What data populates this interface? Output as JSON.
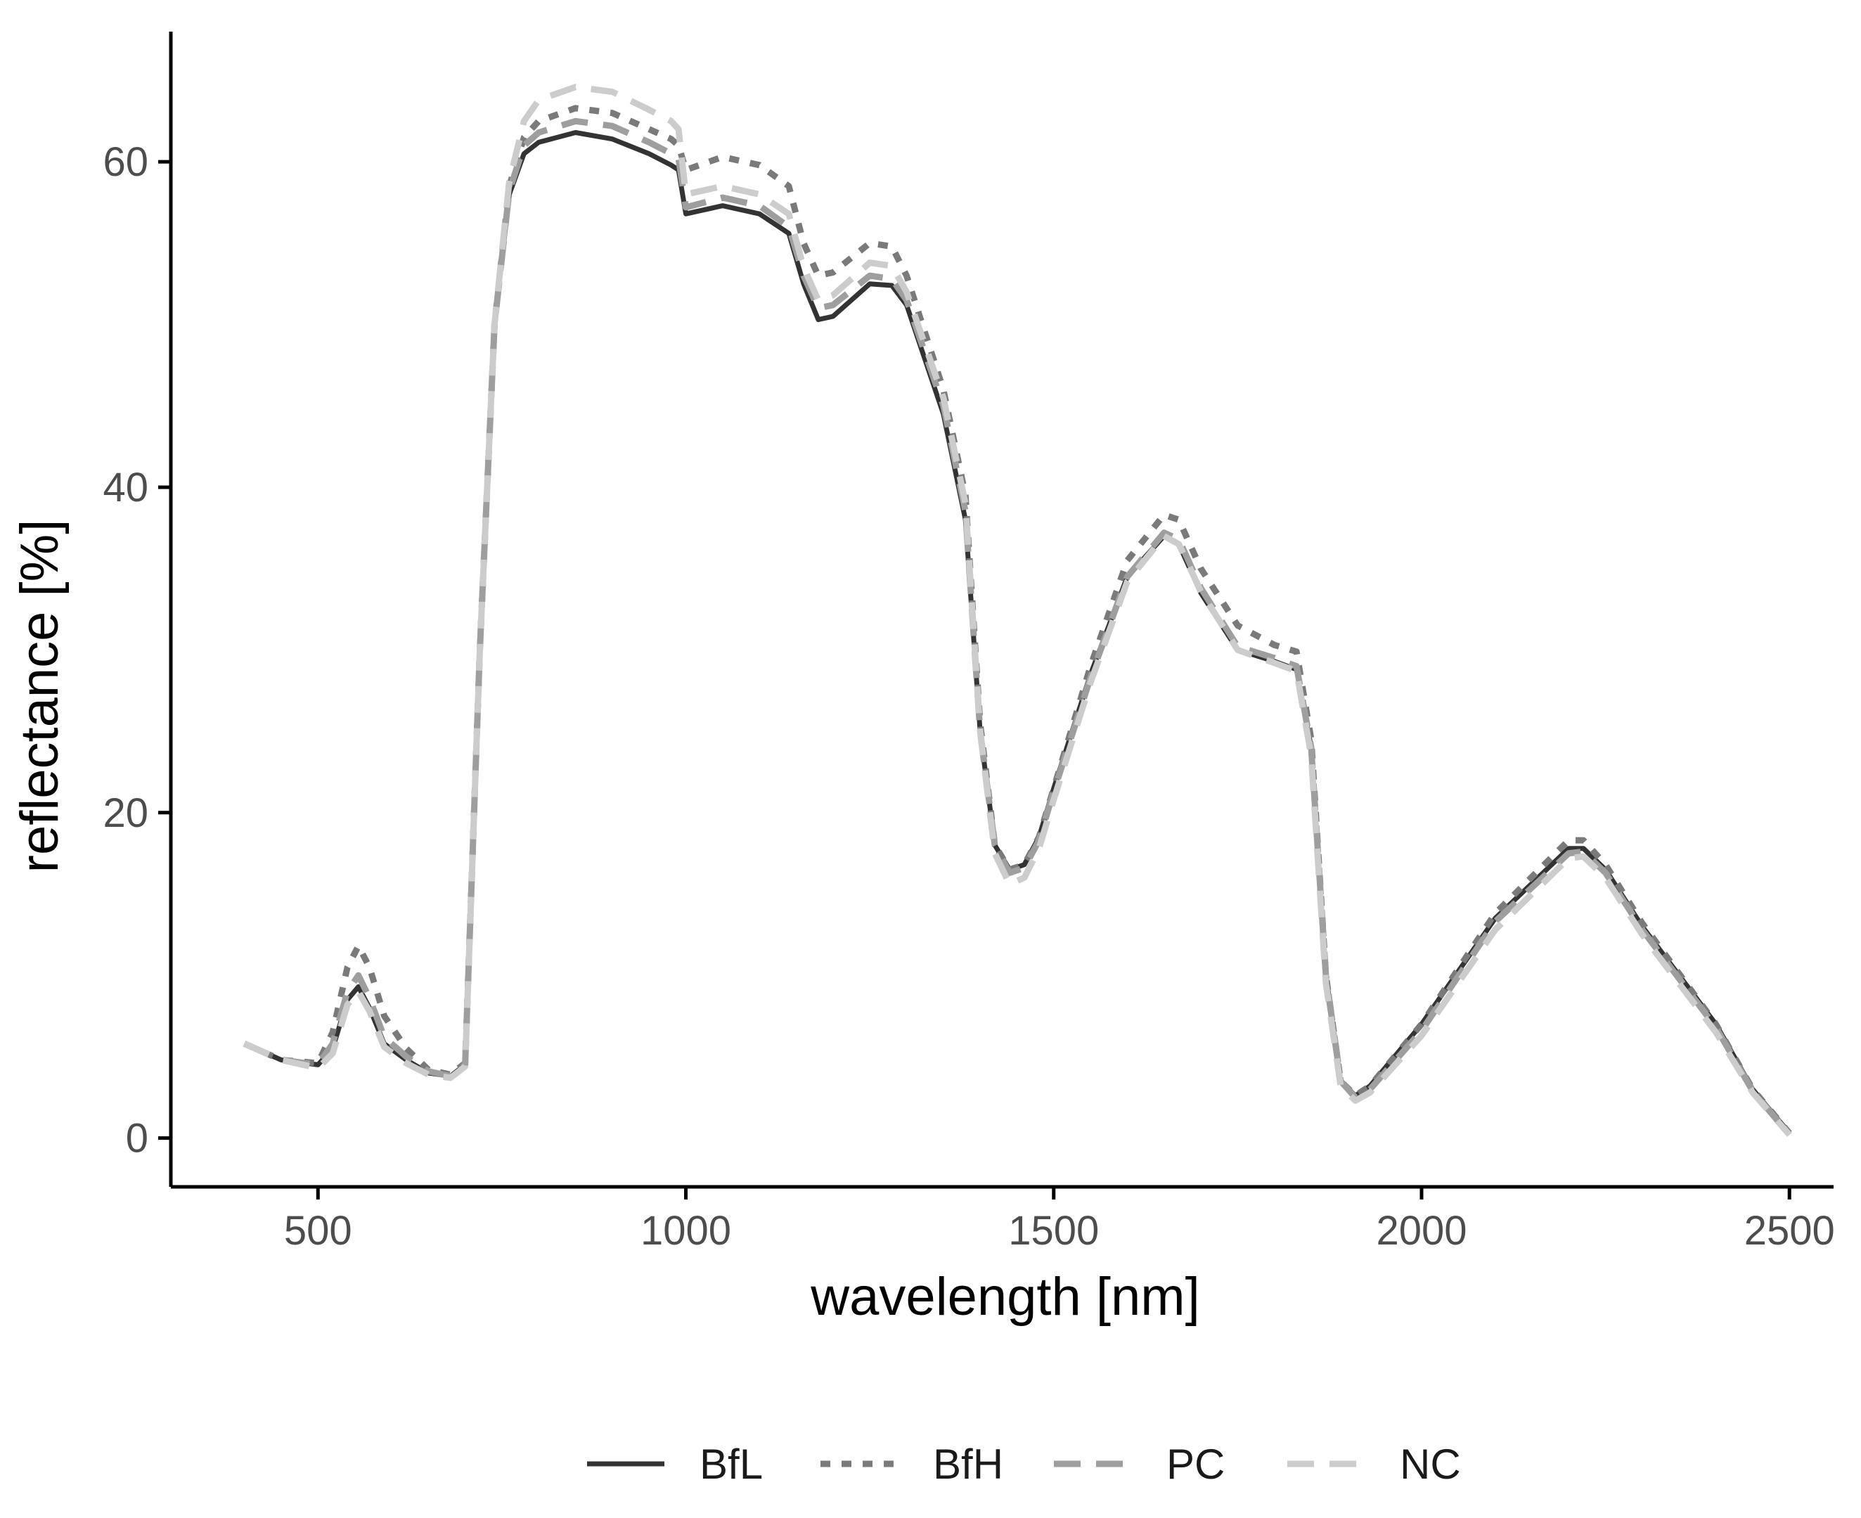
{
  "chart_data": {
    "type": "line",
    "title": "",
    "xlabel": "wavelength [nm]",
    "ylabel": "reflectance [%]",
    "xlim": [
      300,
      2560
    ],
    "ylim": [
      -3,
      68
    ],
    "x_ticks": [
      500,
      1000,
      1500,
      2000,
      2500
    ],
    "y_ticks": [
      0,
      20,
      40,
      60
    ],
    "grid": false,
    "legend_position": "bottom",
    "series": [
      {
        "name": "BfL",
        "color": "#333333",
        "dash": "solid",
        "x": [
          400,
          450,
          500,
          520,
          540,
          555,
          570,
          590,
          620,
          650,
          680,
          700,
          720,
          740,
          760,
          780,
          800,
          850,
          900,
          950,
          980,
          990,
          1000,
          1050,
          1100,
          1140,
          1160,
          1180,
          1200,
          1250,
          1280,
          1300,
          1350,
          1380,
          1400,
          1420,
          1440,
          1460,
          1480,
          1500,
          1550,
          1600,
          1650,
          1670,
          1700,
          1750,
          1800,
          1830,
          1850,
          1870,
          1890,
          1910,
          1930,
          2000,
          2100,
          2200,
          2220,
          2250,
          2300,
          2400,
          2450,
          2500
        ],
        "y": [
          5.8,
          4.8,
          4.5,
          5.5,
          8.5,
          9.3,
          8.0,
          5.8,
          4.8,
          4.0,
          3.8,
          4.5,
          30,
          50,
          58,
          60.5,
          61.2,
          61.8,
          61.4,
          60.5,
          59.8,
          59.5,
          56.8,
          57.3,
          56.8,
          55.6,
          52.5,
          50.3,
          50.5,
          52.5,
          52.4,
          51.2,
          44.5,
          38,
          25,
          18,
          16.5,
          16.8,
          18.5,
          21.5,
          28.5,
          34.5,
          37.0,
          36.5,
          33.5,
          30.0,
          29.3,
          28.8,
          24,
          10,
          3.5,
          2.6,
          3.2,
          7.0,
          13.5,
          17.8,
          17.8,
          16.5,
          13.0,
          7.0,
          3.0,
          0.3
        ]
      },
      {
        "name": "BfH",
        "color": "#7a7a7a",
        "dash": "dotted",
        "x": [
          400,
          450,
          500,
          520,
          540,
          555,
          570,
          590,
          620,
          650,
          680,
          700,
          720,
          740,
          760,
          780,
          800,
          850,
          900,
          950,
          980,
          990,
          1000,
          1050,
          1100,
          1140,
          1160,
          1180,
          1200,
          1250,
          1280,
          1300,
          1350,
          1380,
          1400,
          1420,
          1440,
          1460,
          1480,
          1500,
          1550,
          1600,
          1650,
          1670,
          1700,
          1750,
          1800,
          1830,
          1850,
          1870,
          1890,
          1910,
          1930,
          2000,
          2100,
          2200,
          2220,
          2250,
          2300,
          2400,
          2450,
          2500
        ],
        "y": [
          5.8,
          4.8,
          4.6,
          6.5,
          10.5,
          11.8,
          10.5,
          7.5,
          5.5,
          4.2,
          3.9,
          4.6,
          30,
          50,
          58.5,
          61.5,
          62.5,
          63.3,
          63.0,
          62.0,
          61.4,
          61.0,
          59.5,
          60.3,
          59.8,
          58.5,
          55.0,
          53.0,
          53.2,
          55.0,
          54.8,
          53.0,
          46.0,
          39.5,
          25.5,
          18,
          16.5,
          16.8,
          18.5,
          21.5,
          29,
          35.5,
          38.3,
          38.0,
          35.0,
          31.5,
          30.3,
          29.9,
          24.5,
          10,
          3.5,
          2.6,
          3.2,
          7.0,
          13.8,
          18.3,
          18.3,
          16.8,
          13.2,
          7.0,
          3.0,
          0.3
        ]
      },
      {
        "name": "PC",
        "color": "#9e9e9e",
        "dash": "dashed",
        "x": [
          400,
          450,
          500,
          520,
          540,
          555,
          570,
          590,
          620,
          650,
          680,
          700,
          720,
          740,
          760,
          780,
          800,
          850,
          900,
          950,
          980,
          990,
          1000,
          1050,
          1100,
          1140,
          1160,
          1180,
          1200,
          1250,
          1280,
          1300,
          1350,
          1380,
          1400,
          1420,
          1440,
          1460,
          1480,
          1500,
          1550,
          1600,
          1650,
          1670,
          1700,
          1750,
          1800,
          1830,
          1850,
          1870,
          1890,
          1910,
          1930,
          2000,
          2100,
          2200,
          2220,
          2250,
          2300,
          2400,
          2450,
          2500
        ],
        "y": [
          5.8,
          4.8,
          4.5,
          5.8,
          9.0,
          10.0,
          8.6,
          6.2,
          5.0,
          4.1,
          3.8,
          4.5,
          30,
          50,
          58.2,
          61.0,
          61.8,
          62.5,
          62.2,
          61.2,
          60.5,
          60.2,
          57.2,
          57.8,
          57.3,
          56.0,
          53.0,
          51.0,
          51.2,
          53.0,
          52.8,
          51.5,
          45.0,
          38.5,
          25,
          18,
          16.3,
          16.6,
          18.3,
          21.3,
          28.3,
          34.5,
          37.2,
          36.8,
          33.8,
          30.2,
          29.5,
          29.0,
          24,
          10,
          3.5,
          2.5,
          3.0,
          6.6,
          13.3,
          17.5,
          17.6,
          16.3,
          12.8,
          6.8,
          2.9,
          0.2
        ]
      },
      {
        "name": "NC",
        "color": "#cccccc",
        "dash": "dashed",
        "x": [
          400,
          450,
          500,
          520,
          540,
          555,
          570,
          590,
          620,
          650,
          680,
          700,
          720,
          740,
          760,
          780,
          800,
          850,
          900,
          950,
          980,
          990,
          1000,
          1050,
          1100,
          1140,
          1160,
          1180,
          1200,
          1250,
          1280,
          1300,
          1350,
          1380,
          1400,
          1420,
          1440,
          1460,
          1480,
          1500,
          1550,
          1600,
          1650,
          1670,
          1700,
          1750,
          1800,
          1830,
          1850,
          1870,
          1890,
          1910,
          1930,
          2000,
          2100,
          2200,
          2220,
          2250,
          2300,
          2400,
          2450,
          2500
        ],
        "y": [
          5.8,
          4.8,
          4.3,
          5.2,
          8.2,
          9.0,
          7.8,
          5.6,
          4.6,
          3.9,
          3.7,
          4.4,
          30,
          50,
          58.8,
          62.5,
          63.8,
          64.6,
          64.3,
          63.2,
          62.5,
          62.0,
          58.0,
          58.5,
          58.0,
          56.8,
          53.5,
          51.5,
          51.8,
          53.8,
          53.6,
          52.0,
          45.5,
          39.0,
          25,
          17.5,
          15.6,
          16.0,
          17.8,
          20.8,
          28.0,
          34.2,
          37.0,
          36.5,
          33.6,
          30.0,
          29.2,
          28.7,
          23.5,
          9.5,
          3.2,
          2.3,
          2.8,
          6.3,
          12.8,
          17.2,
          17.3,
          16.0,
          12.5,
          6.5,
          2.8,
          0.2
        ]
      }
    ]
  }
}
